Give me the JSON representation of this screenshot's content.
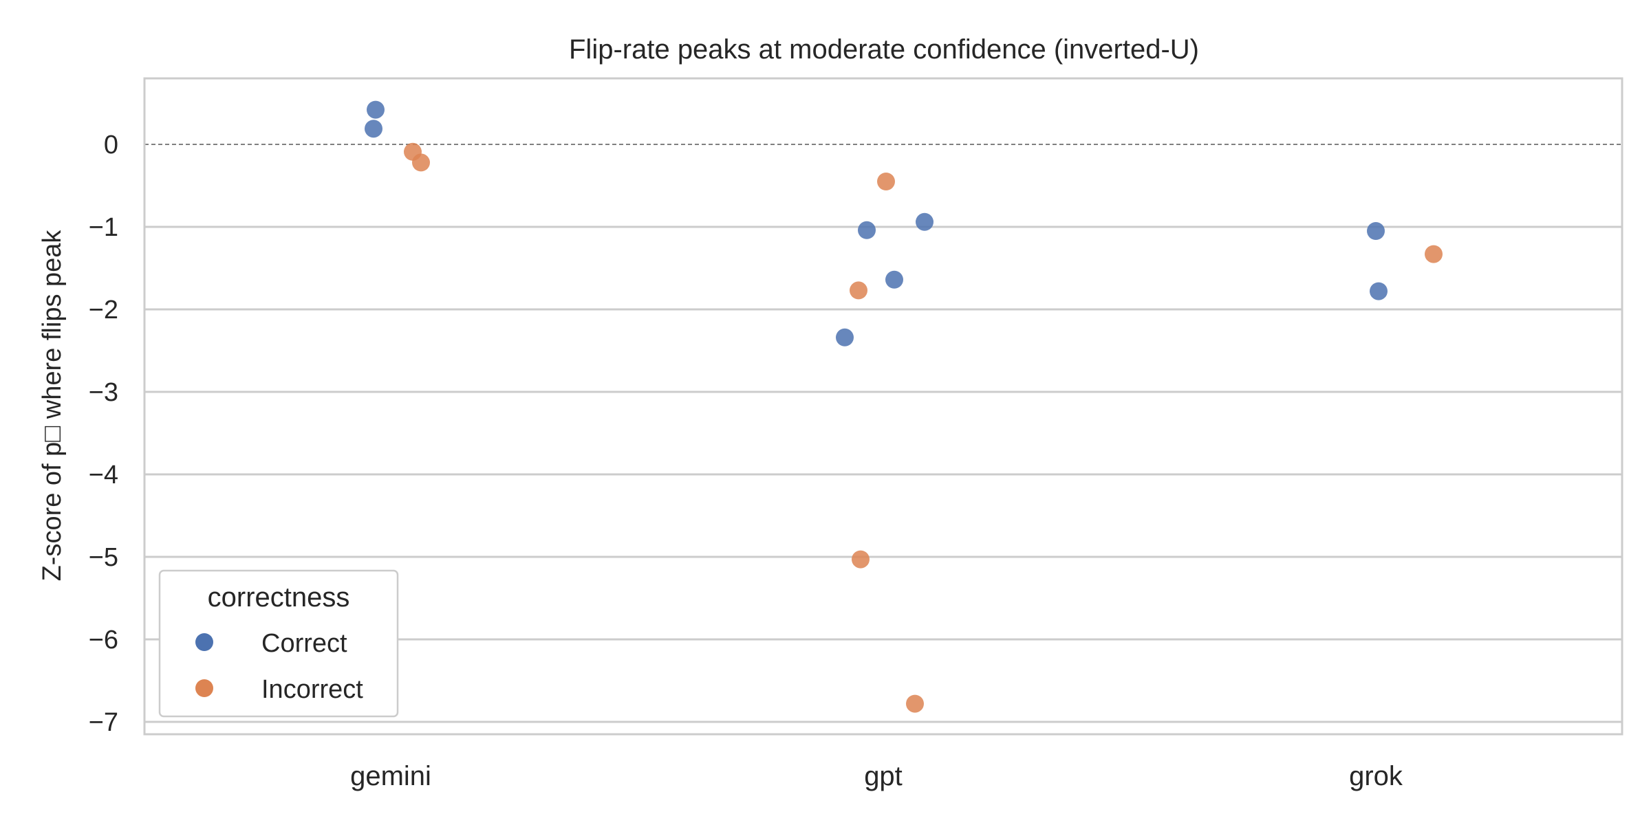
{
  "chart_data": {
    "type": "scatter",
    "title": "Flip-rate peaks at moderate confidence (inverted-U)",
    "xlabel": "",
    "ylabel": "Z-score of p□ where flips peak",
    "categories": [
      "gemini",
      "gpt",
      "grok"
    ],
    "ylim": [
      -7.15,
      0.8
    ],
    "yticks": [
      0,
      -1,
      -2,
      -3,
      -4,
      -5,
      -6,
      -7
    ],
    "ytick_labels": [
      "0",
      "−1",
      "−2",
      "−3",
      "−4",
      "−5",
      "−6",
      "−7"
    ],
    "grid": "horizontal",
    "reference_line": 0,
    "legend": {
      "title": "correctness",
      "placement": "lower-left"
    },
    "colors": {
      "Correct": "#4C72B0",
      "Incorrect": "#DD8452",
      "grid": "#cccccc",
      "refline": "#808080"
    },
    "series": [
      {
        "name": "Correct",
        "points": [
          {
            "category": "gemini",
            "y": 0.42
          },
          {
            "category": "gemini",
            "y": 0.19
          },
          {
            "category": "gpt",
            "y": -1.04
          },
          {
            "category": "gpt",
            "y": -1.64
          },
          {
            "category": "gpt",
            "y": -2.34
          },
          {
            "category": "gpt",
            "y": -0.94
          },
          {
            "category": "grok",
            "y": -1.05
          },
          {
            "category": "grok",
            "y": -1.78
          }
        ]
      },
      {
        "name": "Incorrect",
        "points": [
          {
            "category": "gemini",
            "y": -0.09
          },
          {
            "category": "gemini",
            "y": -0.22
          },
          {
            "category": "gpt",
            "y": -0.45
          },
          {
            "category": "gpt",
            "y": -1.77
          },
          {
            "category": "gpt",
            "y": -5.03
          },
          {
            "category": "gpt",
            "y": -6.78
          },
          {
            "category": "grok",
            "y": -1.33
          }
        ]
      }
    ]
  }
}
